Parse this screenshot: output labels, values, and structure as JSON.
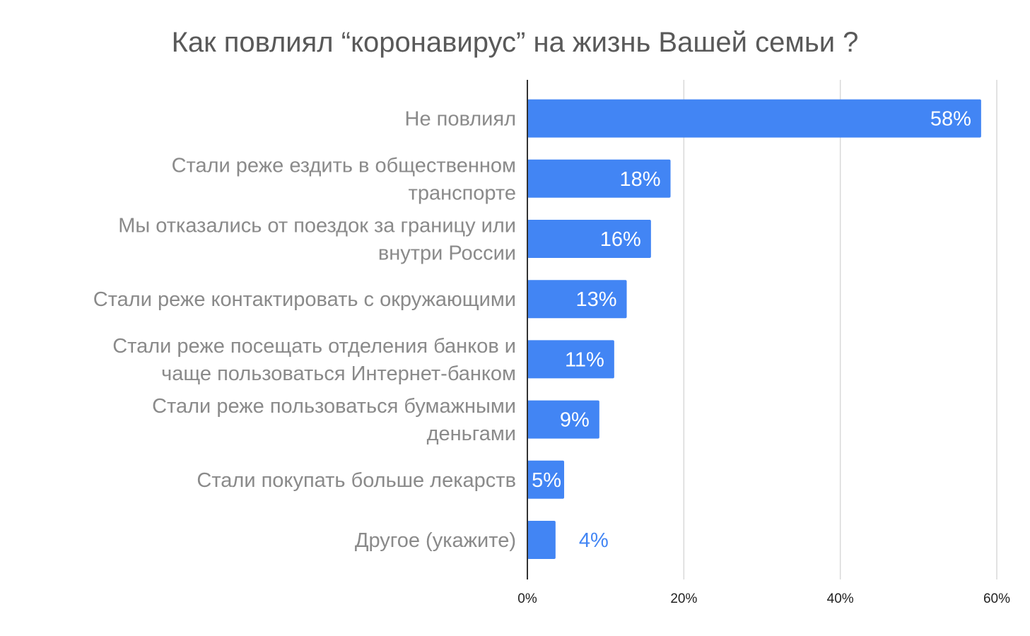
{
  "chart_data": {
    "type": "bar",
    "orientation": "horizontal",
    "title": "Как повлиял “коронавирус” на жизнь Вашей семьи ?",
    "categories": [
      "Не повлиял",
      "Стали реже ездить в общественном транспорте",
      "Мы отказались от поездок за границу или внутри России",
      "Стали реже контактировать с окружающими",
      "Стали реже посещать отделения банков и чаще пользоваться Интернет-банком",
      "Стали реже пользоваться бумажными деньгами",
      "Стали покупать больше лекарств",
      "Другое (укажите)"
    ],
    "category_lines": [
      [
        "Не повлиял"
      ],
      [
        "Стали реже ездить в общественном",
        "транспорте"
      ],
      [
        "Мы отказались от поездок за границу или",
        "внутри России"
      ],
      [
        "Стали реже контактировать с окружающими"
      ],
      [
        "Стали реже посещать отделения банков и",
        "чаще пользоваться Интернет-банком"
      ],
      [
        "Стали реже пользоваться бумажными",
        "деньгами"
      ],
      [
        "Стали покупать больше лекарств"
      ],
      [
        "Другое (укажите)"
      ]
    ],
    "values": [
      58,
      18.3,
      15.8,
      12.7,
      11.1,
      9.2,
      4.7,
      3.6
    ],
    "data_labels": [
      "58%",
      "18%",
      "16%",
      "13%",
      "11%",
      "9%",
      "5%",
      "4%"
    ],
    "xlim": [
      0,
      60
    ],
    "x_ticks": [
      0,
      20,
      40,
      60
    ],
    "x_tick_labels": [
      "0%",
      "20%",
      "40%",
      "60%"
    ],
    "grid": true,
    "colors": {
      "bar": "#4285f4",
      "label_inside": "#ffffff",
      "label_outside": "#4285f4",
      "grid": "#d9d9d9",
      "axis": "#333333",
      "category_text": "#8a8a8a",
      "title_text": "#595959"
    }
  }
}
